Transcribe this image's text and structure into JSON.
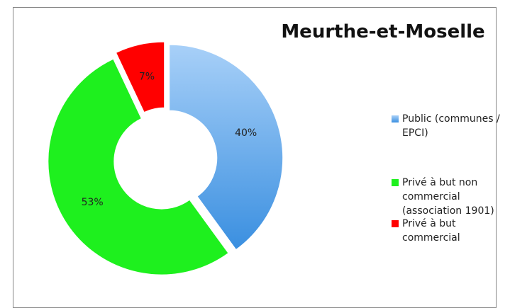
{
  "chart_data": {
    "type": "donut",
    "title": "Meurthe-et-Moselle",
    "categories": [
      "Public (communes / EPCI)",
      "Privé à but non commercial (association 1901)",
      "Privé à but commercial"
    ],
    "values": [
      40,
      53,
      7
    ],
    "value_labels": [
      "40%",
      "53%",
      "7%"
    ],
    "colors": [
      "#5aa6ec",
      "#1ef01e",
      "#ff0000"
    ],
    "legend": "right"
  }
}
